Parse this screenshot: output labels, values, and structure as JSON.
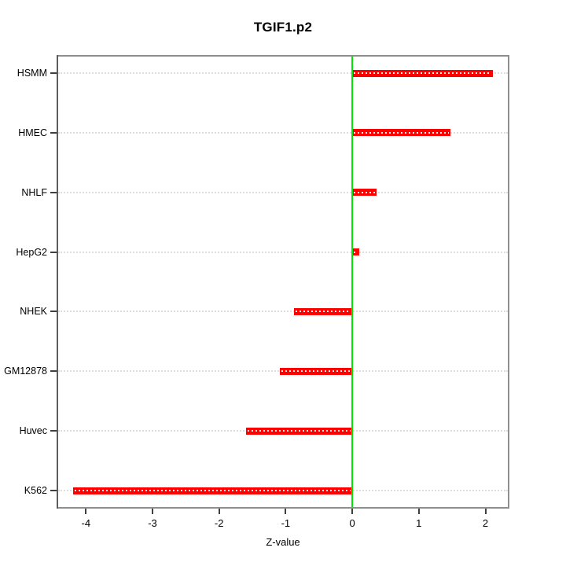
{
  "chart_data": {
    "type": "bar",
    "orientation": "horizontal",
    "title": "TGIF1.p2",
    "xlabel": "Z-value",
    "ylabel": "",
    "categories": [
      "HSMM",
      "HMEC",
      "NHLF",
      "HepG2",
      "NHEK",
      "GM12878",
      "Huvec",
      "K562"
    ],
    "values": [
      2.11,
      1.47,
      0.36,
      0.11,
      -0.87,
      -1.09,
      -1.6,
      -4.19
    ],
    "xlim": [
      -4.44,
      2.36
    ],
    "xticks": [
      -4,
      -3,
      -2,
      -1,
      0,
      1,
      2
    ],
    "bar_color": "#ff0000",
    "bar_centerline_color": "#ffffff",
    "zero_line_color": "#00e600",
    "grid_color": "#dedede",
    "frame_color": "#8f8f8f",
    "grid": "dotted-horizontal-per-category",
    "legend": "none"
  }
}
